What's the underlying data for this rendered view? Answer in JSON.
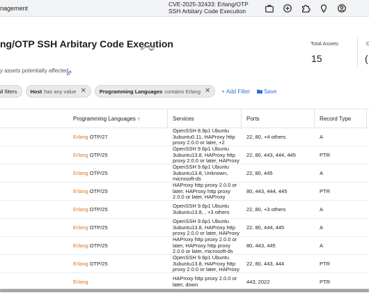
{
  "topbar": {
    "breadcrumb": "nagement",
    "cve_title": "CVE-2025-32433: Erlang/OTP SSH Arbitary Code Execution",
    "icons": [
      "briefcase-icon",
      "plus-circle-icon",
      "puzzle-icon",
      "lightbulb-icon",
      "user-circle-icon"
    ]
  },
  "page": {
    "title": "ng/OTP SSH Arbitary Code Execution",
    "subtitle": "y assets potentially affected"
  },
  "stats": {
    "total_assets_label": "Total Assets",
    "total_assets_value": "15",
    "next_label": "D",
    "next_value": "("
  },
  "filters": {
    "chips": [
      {
        "label": "all filters",
        "sub": ""
      },
      {
        "label": "Host",
        "sub": "has any value"
      },
      {
        "label": "Programming Languages",
        "sub": "contains Erlang"
      }
    ],
    "add_filter": "+ Add Filter",
    "save": "Save"
  },
  "table": {
    "headers": {
      "languages": "Programming Languages",
      "services": "Services",
      "ports": "Ports",
      "record_type": "Record Type"
    },
    "rows": [
      {
        "lang": "Erlang",
        "ver": " OTP/27",
        "services": "OpenSSH 8.9p1 Ubuntu 3ubuntu0.11, HAProxy http proxy 2.0.0 or later, +2",
        "ports": "22, 80, +4 others",
        "record": "A"
      },
      {
        "lang": "Erlang",
        "ver": " OTP/25",
        "services": "OpenSSH 9.6p1 Ubuntu 3ubuntu13.8, HAProxy http proxy 2.0.0 or later, HAProxy",
        "ports": "22, 80, 443, 444, 445",
        "record": "PTR"
      },
      {
        "lang": "Erlang",
        "ver": " OTP/25",
        "services": "OpenSSH 9.6p1 Ubuntu 3ubuntu13.8, Unknown, microsoft-ds",
        "ports": "22, 80, 445",
        "record": "A"
      },
      {
        "lang": "Erlang",
        "ver": " OTP/25",
        "services": "HAProxy http proxy 2.0.0 or later, HAProxy http proxy 2.0.0 or later, HAProxy",
        "ports": "80, 443, 444, 445",
        "record": "PTR"
      },
      {
        "lang": "Erlang",
        "ver": " OTP/25",
        "services": "OpenSSH 9.6p1 Ubuntu 3ubuntu13.8, , +3 others",
        "ports": "22, 80, +3 others",
        "record": "A"
      },
      {
        "lang": "Erlang",
        "ver": " OTP/25",
        "services": "OpenSSH 9.6p1 Ubuntu 3ubuntu13.8, HAProxy http proxy 2.0.0 or later, HAProxy",
        "ports": "22, 80, 444, 445",
        "record": "A"
      },
      {
        "lang": "Erlang",
        "ver": " OTP/25",
        "services": "HAProxy http proxy 2.0.0 or later, HAProxy http proxy 2.0.0 or later, microsoft-ds",
        "ports": "80, 443, 445",
        "record": "A"
      },
      {
        "lang": "Erlang",
        "ver": " OTP/25",
        "services": "OpenSSH 9.6p1 Ubuntu 3ubuntu13.8, HAProxy http proxy 2.0.0 or later, HAProxy",
        "ports": "22, 80, 443, 444",
        "record": "PTR"
      },
      {
        "lang": "Erlang",
        "ver": "",
        "services": "HAProxy http proxy 2.0.0 or later, down",
        "ports": "443, 2022",
        "record": "PTR"
      }
    ]
  }
}
